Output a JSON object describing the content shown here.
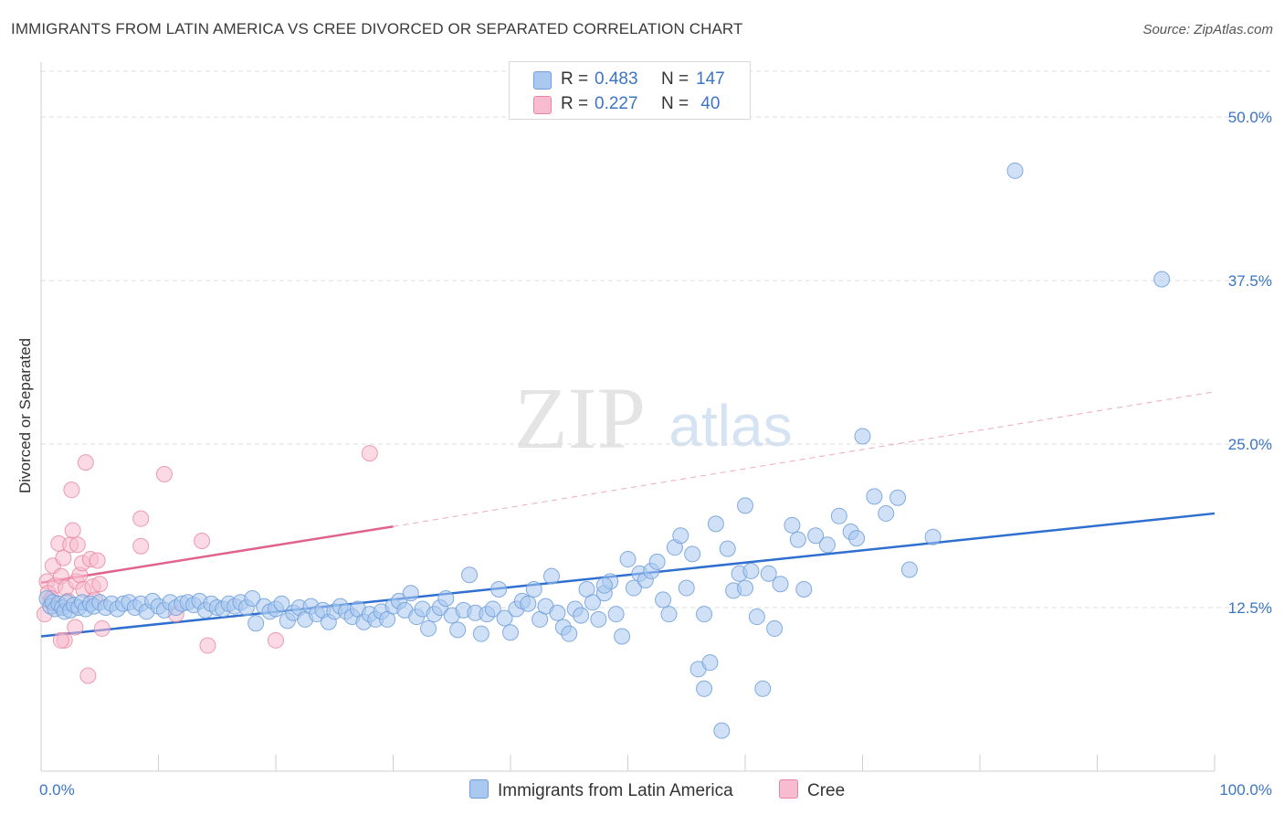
{
  "title": "IMMIGRANTS FROM LATIN AMERICA VS CREE DIVORCED OR SEPARATED CORRELATION CHART",
  "source": "Source: ZipAtlas.com",
  "watermark": {
    "zip": "ZIP",
    "atlas": "atlas"
  },
  "colors": {
    "blue_fill": "#aac8f0",
    "blue_stroke": "#6f9fd8",
    "blue_line": "#2f6fd0",
    "pink_fill": "#f7bcd0",
    "pink_stroke": "#e7869f",
    "pink_line": "#e0638d",
    "tick_label": "#3b75c4",
    "grid": "#dddddd"
  },
  "legend": {
    "series": [
      {
        "r_label": "R =",
        "r_value": "0.483",
        "n_label": "N =",
        "n_value": "147",
        "color": "#aac8f0",
        "border": "#6f9fd8"
      },
      {
        "r_label": "R =",
        "r_value": "0.227",
        "n_label": "N =",
        "n_value": " 40",
        "color": "#f7bcd0",
        "border": "#e7869f"
      }
    ]
  },
  "bottom_legend": [
    {
      "label": "Immigrants from Latin America",
      "color": "#aac8f0",
      "border": "#6f9fd8"
    },
    {
      "label": "Cree",
      "color": "#f7bcd0",
      "border": "#e7869f"
    }
  ],
  "chart_data": {
    "type": "scatter",
    "title": "IMMIGRANTS FROM LATIN AMERICA VS CREE DIVORCED OR SEPARATED CORRELATION CHART",
    "ylabel": "Divorced or Separated",
    "xlabel": "",
    "xlim": [
      0,
      100
    ],
    "ylim": [
      0,
      53.5
    ],
    "x_tick_labels": [
      "0.0%",
      "100.0%"
    ],
    "y_ticks": [
      12.5,
      25.0,
      37.5,
      50.0
    ],
    "y_tick_labels": [
      "12.5%",
      "25.0%",
      "37.5%",
      "50.0%"
    ],
    "grid": "horizontal dashed",
    "series": [
      {
        "name": "Immigrants from Latin America",
        "r": 0.483,
        "n": 147,
        "trend": {
          "x": [
            0,
            100
          ],
          "y": [
            10.3,
            19.7
          ]
        },
        "points": [
          [
            0.5,
            13.2
          ],
          [
            0.8,
            12.6
          ],
          [
            1.0,
            12.9
          ],
          [
            1.2,
            12.4
          ],
          [
            1.5,
            12.8
          ],
          [
            1.8,
            12.5
          ],
          [
            2.0,
            12.2
          ],
          [
            2.2,
            12.9
          ],
          [
            2.5,
            12.3
          ],
          [
            2.8,
            12.7
          ],
          [
            3.2,
            12.5
          ],
          [
            3.5,
            12.9
          ],
          [
            3.8,
            12.4
          ],
          [
            4.2,
            12.8
          ],
          [
            4.5,
            12.6
          ],
          [
            5.0,
            12.9
          ],
          [
            5.5,
            12.5
          ],
          [
            6.0,
            12.8
          ],
          [
            6.5,
            12.4
          ],
          [
            7.0,
            12.8
          ],
          [
            7.5,
            12.9
          ],
          [
            8.0,
            12.5
          ],
          [
            8.5,
            12.8
          ],
          [
            9.0,
            12.2
          ],
          [
            9.5,
            13.0
          ],
          [
            10.0,
            12.6
          ],
          [
            10.5,
            12.3
          ],
          [
            11.0,
            12.9
          ],
          [
            11.5,
            12.5
          ],
          [
            12.0,
            12.8
          ],
          [
            12.5,
            12.9
          ],
          [
            13.0,
            12.7
          ],
          [
            13.5,
            13.0
          ],
          [
            14.0,
            12.3
          ],
          [
            14.5,
            12.8
          ],
          [
            15.0,
            12.5
          ],
          [
            15.5,
            12.4
          ],
          [
            16.0,
            12.8
          ],
          [
            16.5,
            12.6
          ],
          [
            17.0,
            12.9
          ],
          [
            17.5,
            12.5
          ],
          [
            18.0,
            13.2
          ],
          [
            18.3,
            11.3
          ],
          [
            19.0,
            12.6
          ],
          [
            19.5,
            12.2
          ],
          [
            20.0,
            12.4
          ],
          [
            20.5,
            12.8
          ],
          [
            21.0,
            11.5
          ],
          [
            21.5,
            12.1
          ],
          [
            22.0,
            12.5
          ],
          [
            22.5,
            11.6
          ],
          [
            23.0,
            12.6
          ],
          [
            23.5,
            12.0
          ],
          [
            24.0,
            12.3
          ],
          [
            24.5,
            11.4
          ],
          [
            25.0,
            12.2
          ],
          [
            25.5,
            12.6
          ],
          [
            26.0,
            12.2
          ],
          [
            26.5,
            11.8
          ],
          [
            27.0,
            12.4
          ],
          [
            27.5,
            11.4
          ],
          [
            28.0,
            12.0
          ],
          [
            28.5,
            11.6
          ],
          [
            29.0,
            12.2
          ],
          [
            29.5,
            11.6
          ],
          [
            30.0,
            12.6
          ],
          [
            30.5,
            13.0
          ],
          [
            31.0,
            12.3
          ],
          [
            31.5,
            13.6
          ],
          [
            32.0,
            11.8
          ],
          [
            32.5,
            12.4
          ],
          [
            33.0,
            10.9
          ],
          [
            33.5,
            12.0
          ],
          [
            34.0,
            12.5
          ],
          [
            34.5,
            13.2
          ],
          [
            35.0,
            11.9
          ],
          [
            35.5,
            10.8
          ],
          [
            36.0,
            12.3
          ],
          [
            36.5,
            15.0
          ],
          [
            37.0,
            12.1
          ],
          [
            37.5,
            10.5
          ],
          [
            38.0,
            12.0
          ],
          [
            38.5,
            12.4
          ],
          [
            39.0,
            13.9
          ],
          [
            39.5,
            11.7
          ],
          [
            40.0,
            10.6
          ],
          [
            40.5,
            12.4
          ],
          [
            41.0,
            13.0
          ],
          [
            41.5,
            12.8
          ],
          [
            42.0,
            13.9
          ],
          [
            42.5,
            11.6
          ],
          [
            43.0,
            12.6
          ],
          [
            43.5,
            14.9
          ],
          [
            44.0,
            12.1
          ],
          [
            44.5,
            11.0
          ],
          [
            45.0,
            10.5
          ],
          [
            45.5,
            12.4
          ],
          [
            46.0,
            11.9
          ],
          [
            46.5,
            13.9
          ],
          [
            47.0,
            12.9
          ],
          [
            47.5,
            11.6
          ],
          [
            48.0,
            13.6
          ],
          [
            48.5,
            14.5
          ],
          [
            49.0,
            12.0
          ],
          [
            49.5,
            10.3
          ],
          [
            50.0,
            16.2
          ],
          [
            50.5,
            14.0
          ],
          [
            51.0,
            15.1
          ],
          [
            51.5,
            14.6
          ],
          [
            52.0,
            15.3
          ],
          [
            52.5,
            16.0
          ],
          [
            53.0,
            13.1
          ],
          [
            53.5,
            12.0
          ],
          [
            54.0,
            17.1
          ],
          [
            54.5,
            18.0
          ],
          [
            55.0,
            14.0
          ],
          [
            55.5,
            16.6
          ],
          [
            56.0,
            7.8
          ],
          [
            56.5,
            6.3
          ],
          [
            57.0,
            8.3
          ],
          [
            57.5,
            18.9
          ],
          [
            58.0,
            3.1
          ],
          [
            58.5,
            17.0
          ],
          [
            59.0,
            13.8
          ],
          [
            59.5,
            15.1
          ],
          [
            60.0,
            20.3
          ],
          [
            60.5,
            15.3
          ],
          [
            61.0,
            11.8
          ],
          [
            61.5,
            6.3
          ],
          [
            62.0,
            15.1
          ],
          [
            62.5,
            10.9
          ],
          [
            63.0,
            14.3
          ],
          [
            64.0,
            18.8
          ],
          [
            64.5,
            17.7
          ],
          [
            65.0,
            13.9
          ],
          [
            66.0,
            18.0
          ],
          [
            67.0,
            17.3
          ],
          [
            68.0,
            19.5
          ],
          [
            69.0,
            18.3
          ],
          [
            69.5,
            17.8
          ],
          [
            70.0,
            25.6
          ],
          [
            71.0,
            21.0
          ],
          [
            72.0,
            19.7
          ],
          [
            73.0,
            20.9
          ],
          [
            74.0,
            15.4
          ],
          [
            76.0,
            17.9
          ],
          [
            83.0,
            45.9
          ],
          [
            95.5,
            37.6
          ],
          [
            56.5,
            12.0
          ],
          [
            60.0,
            14.0
          ],
          [
            48.0,
            14.2
          ]
        ]
      },
      {
        "name": "Cree",
        "r": 0.227,
        "n": 40,
        "trend_solid": {
          "x": [
            0,
            30
          ],
          "y": [
            14.4,
            18.7
          ]
        },
        "trend_dashed": {
          "x": [
            30,
            100
          ],
          "y": [
            18.7,
            29.0
          ]
        },
        "points": [
          [
            0.3,
            12.0
          ],
          [
            0.5,
            14.5
          ],
          [
            0.6,
            13.6
          ],
          [
            0.8,
            13.0
          ],
          [
            1.0,
            15.7
          ],
          [
            1.2,
            14.2
          ],
          [
            1.4,
            12.6
          ],
          [
            1.5,
            17.4
          ],
          [
            1.7,
            14.9
          ],
          [
            1.9,
            16.3
          ],
          [
            2.0,
            10.0
          ],
          [
            2.1,
            14.0
          ],
          [
            2.3,
            13.0
          ],
          [
            2.5,
            17.3
          ],
          [
            2.6,
            21.5
          ],
          [
            2.7,
            18.4
          ],
          [
            2.9,
            11.0
          ],
          [
            3.0,
            14.5
          ],
          [
            3.1,
            17.3
          ],
          [
            3.3,
            15.0
          ],
          [
            3.5,
            15.9
          ],
          [
            3.6,
            13.9
          ],
          [
            3.8,
            23.6
          ],
          [
            4.0,
            7.3
          ],
          [
            4.2,
            16.2
          ],
          [
            4.4,
            14.1
          ],
          [
            4.6,
            13.1
          ],
          [
            4.8,
            16.1
          ],
          [
            5.0,
            14.3
          ],
          [
            5.2,
            10.9
          ],
          [
            8.5,
            19.3
          ],
          [
            8.5,
            17.2
          ],
          [
            10.5,
            22.7
          ],
          [
            11.5,
            12.0
          ],
          [
            13.7,
            17.6
          ],
          [
            14.2,
            9.6
          ],
          [
            20.0,
            10.0
          ],
          [
            28.0,
            24.3
          ],
          [
            1.7,
            10.0
          ],
          [
            0.9,
            13.2
          ]
        ]
      }
    ]
  }
}
